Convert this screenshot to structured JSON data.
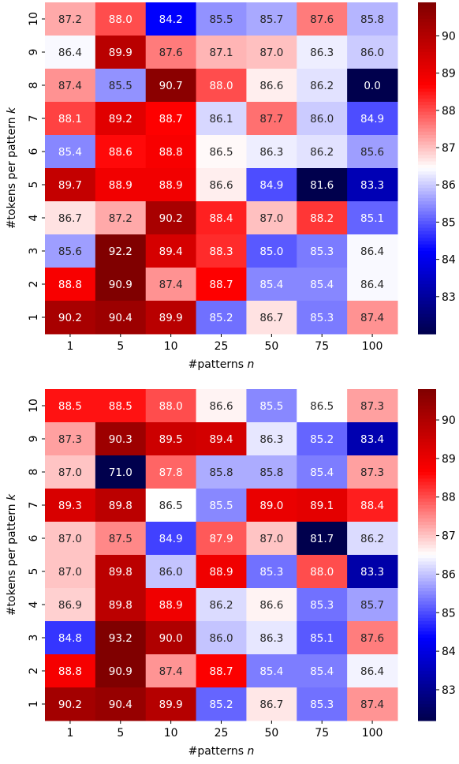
{
  "chart_data": [
    {
      "type": "heatmap",
      "title": "",
      "xlabel": "#patterns n",
      "ylabel": "#tokens per pattern k",
      "x": [
        "1",
        "5",
        "10",
        "25",
        "50",
        "75",
        "100"
      ],
      "y": [
        "10",
        "9",
        "8",
        "7",
        "6",
        "5",
        "4",
        "3",
        "2",
        "1"
      ],
      "values": [
        [
          87.2,
          88.0,
          84.2,
          85.5,
          85.7,
          87.6,
          85.8
        ],
        [
          86.4,
          89.9,
          87.6,
          87.1,
          87.0,
          86.3,
          86.0
        ],
        [
          87.4,
          85.5,
          90.7,
          88.0,
          86.6,
          86.2,
          0.0
        ],
        [
          88.1,
          89.2,
          88.7,
          86.1,
          87.7,
          86.0,
          84.9
        ],
        [
          85.4,
          88.6,
          88.8,
          86.5,
          86.3,
          86.2,
          85.6
        ],
        [
          89.7,
          88.9,
          88.9,
          86.6,
          84.9,
          81.6,
          83.3
        ],
        [
          86.7,
          87.2,
          90.2,
          88.4,
          87.0,
          88.2,
          85.1
        ],
        [
          85.6,
          92.2,
          89.4,
          88.3,
          85.0,
          85.3,
          86.4
        ],
        [
          88.8,
          90.9,
          87.4,
          88.7,
          85.4,
          85.4,
          86.4
        ],
        [
          90.2,
          90.4,
          89.9,
          85.2,
          86.7,
          85.3,
          87.4
        ]
      ],
      "colormap": "seismic",
      "vmin": 82.0,
      "vmax": 90.9,
      "colorbar_ticks": [
        83,
        84,
        85,
        86,
        87,
        88,
        89,
        90
      ]
    },
    {
      "type": "heatmap",
      "title": "",
      "xlabel": "#patterns n",
      "ylabel": "#tokens per pattern k",
      "x": [
        "1",
        "5",
        "10",
        "25",
        "50",
        "75",
        "100"
      ],
      "y": [
        "10",
        "9",
        "8",
        "7",
        "6",
        "5",
        "4",
        "3",
        "2",
        "1"
      ],
      "values": [
        [
          88.5,
          88.5,
          88.0,
          86.6,
          85.5,
          86.5,
          87.3
        ],
        [
          87.3,
          90.3,
          89.5,
          89.4,
          86.3,
          85.2,
          83.4
        ],
        [
          87.0,
          71.0,
          87.8,
          85.8,
          85.8,
          85.4,
          87.3
        ],
        [
          89.3,
          89.8,
          86.5,
          85.5,
          89.0,
          89.1,
          88.4
        ],
        [
          87.0,
          87.5,
          84.9,
          87.9,
          87.0,
          81.7,
          86.2
        ],
        [
          87.0,
          89.8,
          86.0,
          88.9,
          85.3,
          88.0,
          83.3
        ],
        [
          86.9,
          89.8,
          88.9,
          86.2,
          86.6,
          85.3,
          85.7
        ],
        [
          84.8,
          93.2,
          90.0,
          86.0,
          86.3,
          85.1,
          87.6
        ],
        [
          88.8,
          90.9,
          87.4,
          88.7,
          85.4,
          85.4,
          86.4
        ],
        [
          90.2,
          90.4,
          89.9,
          85.2,
          86.7,
          85.3,
          87.4
        ]
      ],
      "colormap": "seismic",
      "vmin": 82.2,
      "vmax": 90.8,
      "colorbar_ticks": [
        83,
        84,
        85,
        86,
        87,
        88,
        89,
        90
      ]
    }
  ]
}
